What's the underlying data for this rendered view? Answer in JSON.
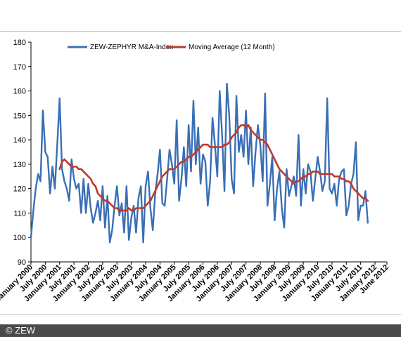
{
  "footer": {
    "copyright": "© ZEW"
  },
  "colors": {
    "index_line": "#3a6fb5",
    "ma_line": "#c0392b",
    "axis": "#000000",
    "footer_bg": "#4a4a4a"
  },
  "chart_data": {
    "type": "line",
    "title": "",
    "xlabel": "",
    "ylabel": "",
    "ylim": [
      90,
      180
    ],
    "yticks": [
      90,
      100,
      110,
      120,
      130,
      140,
      150,
      160,
      170,
      180
    ],
    "grid": false,
    "legend_placement": "top",
    "x_start": "January 2000",
    "x_end": "June 2012",
    "xtick_labels": [
      "January 2000",
      "July 2000",
      "January 2001",
      "July 2001",
      "January 2002",
      "July 2002",
      "January 2003",
      "July 2003",
      "January 2004",
      "July 2004",
      "January 2005",
      "July 2005",
      "January 2006",
      "July 2006",
      "January 2007",
      "July 2007",
      "January 2008",
      "July 2008",
      "January 2009",
      "July 2009",
      "January 2010",
      "July 2010",
      "January 2011",
      "July 2011",
      "January 2012",
      "June 2012"
    ],
    "series": [
      {
        "name": "ZEW-ZEPHYR M&A-Index",
        "color": "#3a6fb5",
        "values": [
          100,
          111,
          120,
          126,
          123,
          152,
          135,
          133,
          118,
          129,
          120,
          138,
          157,
          128,
          123,
          120,
          115,
          132,
          124,
          120,
          122,
          110,
          124,
          110,
          122,
          112,
          106,
          110,
          115,
          107,
          121,
          104,
          117,
          98,
          103,
          113,
          121,
          109,
          114,
          102,
          121,
          99,
          108,
          113,
          102,
          116,
          121,
          98,
          121,
          127,
          112,
          103,
          118,
          126,
          136,
          114,
          113,
          124,
          136,
          130,
          122,
          148,
          115,
          124,
          137,
          121,
          146,
          127,
          156,
          130,
          145,
          122,
          134,
          131,
          113,
          123,
          149,
          138,
          125,
          160,
          142,
          119,
          163,
          150,
          124,
          118,
          158,
          135,
          142,
          133,
          152,
          130,
          145,
          121,
          135,
          146,
          138,
          123,
          159,
          113,
          122,
          133,
          107,
          120,
          127,
          112,
          104,
          128,
          117,
          121,
          125,
          117,
          142,
          113,
          128,
          118,
          130,
          127,
          115,
          124,
          133,
          127,
          119,
          123,
          157,
          120,
          118,
          122,
          113,
          124,
          127,
          128,
          109,
          113,
          122,
          126,
          139,
          107,
          113,
          113,
          119,
          106
        ]
      },
      {
        "name": "Moving Average (12 Month)",
        "color": "#c0392b",
        "start_month": 12,
        "values": [
          128,
          131,
          132,
          131,
          130,
          129,
          129,
          129,
          128,
          128,
          127,
          126,
          125,
          124,
          122,
          121,
          118,
          117,
          116,
          115,
          115,
          114,
          113,
          112,
          112,
          111,
          111,
          111,
          111,
          112,
          111,
          111,
          112,
          112,
          112,
          112,
          113,
          114,
          115,
          117,
          119,
          121,
          123,
          125,
          126,
          127,
          128,
          128,
          128,
          129,
          130,
          131,
          131,
          132,
          133,
          133,
          134,
          135,
          136,
          137,
          138,
          138,
          138,
          137,
          137,
          137,
          137,
          137,
          137,
          138,
          138,
          139,
          141,
          142,
          143,
          145,
          146,
          146,
          145,
          146,
          144,
          143,
          142,
          141,
          140,
          140,
          139,
          138,
          136,
          134,
          132,
          130,
          128,
          127,
          126,
          125,
          124,
          123,
          122,
          123,
          123,
          124,
          125,
          125,
          126,
          126,
          127,
          127,
          127,
          126,
          126,
          126,
          126,
          126,
          126,
          125,
          125,
          125,
          124,
          124,
          123,
          123,
          122,
          120,
          119,
          118,
          117,
          116,
          116,
          115
        ]
      }
    ]
  }
}
